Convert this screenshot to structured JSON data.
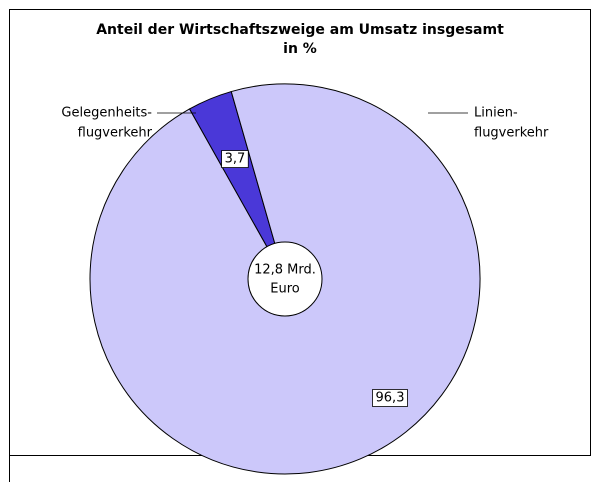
{
  "chart_data": {
    "type": "donut",
    "title": [
      "Anteil der Wirtschaftszweige am Umsatz insgesamt",
      "in %"
    ],
    "categories": [
      [
        "Gelegenheits-",
        "flugverkehr"
      ],
      [
        "Linien-",
        "flugverkehr"
      ]
    ],
    "values": [
      3.7,
      96.3
    ],
    "value_labels": [
      "3,7",
      "96,3"
    ],
    "colors": [
      "#4a38d8",
      "#ccc8fa"
    ],
    "center_label": [
      "12,8 Mrd.",
      "Euro"
    ]
  }
}
